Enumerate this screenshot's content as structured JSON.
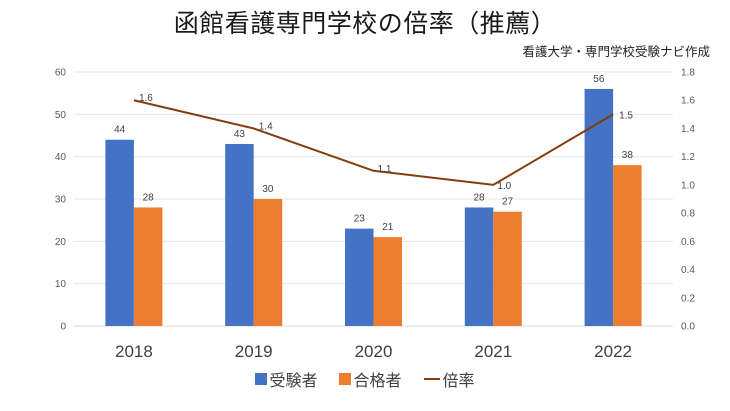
{
  "title": "函館看護専門学校の倍率（推薦）",
  "credit": "看護大学・専門学校受験ナビ作成",
  "colors": {
    "applicants": "#4472c4",
    "passers": "#ed7d31",
    "ratio": "#843c0c",
    "grid": "#e6e6e6"
  },
  "chart_data": {
    "type": "bar",
    "title": "函館看護専門学校の倍率（推薦）",
    "categories": [
      "2018",
      "2019",
      "2020",
      "2021",
      "2022"
    ],
    "series": [
      {
        "name": "受験者",
        "type": "bar",
        "axis": "left",
        "values": [
          44,
          43,
          23,
          28,
          56
        ]
      },
      {
        "name": "合格者",
        "type": "bar",
        "axis": "left",
        "values": [
          28,
          30,
          21,
          27,
          38
        ]
      },
      {
        "name": "倍率",
        "type": "line",
        "axis": "right",
        "values": [
          1.6,
          1.4,
          1.1,
          1.0,
          1.5
        ],
        "labels": [
          "1.6",
          "1.4",
          "1.1",
          "1.0",
          "1.5"
        ]
      }
    ],
    "left_axis": {
      "ylim": [
        0,
        60
      ],
      "ticks": [
        "0",
        "10",
        "20",
        "30",
        "40",
        "50",
        "60"
      ]
    },
    "right_axis": {
      "ylim": [
        0,
        1.8
      ],
      "ticks": [
        "0.0",
        "0.2",
        "0.4",
        "0.6",
        "0.8",
        "1.0",
        "1.2",
        "1.4",
        "1.6",
        "1.8"
      ]
    },
    "grid": true,
    "legend": "bottom",
    "xlabel": "",
    "ylabel": ""
  },
  "legend": [
    {
      "label": "受験者",
      "icon": "square"
    },
    {
      "label": "合格者",
      "icon": "square"
    },
    {
      "label": "倍率",
      "icon": "line"
    }
  ]
}
